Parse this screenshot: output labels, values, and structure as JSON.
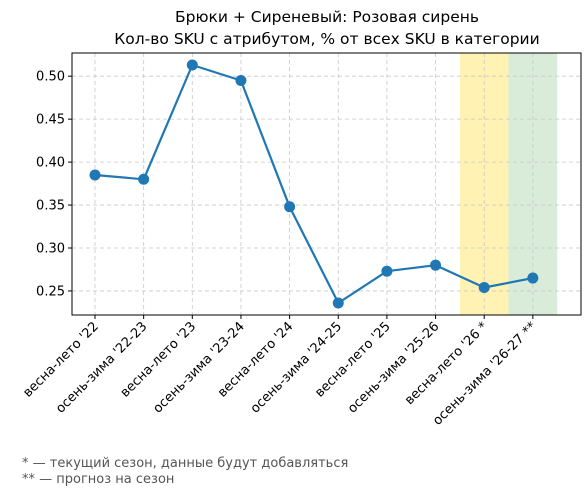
{
  "chart_data": {
    "type": "line",
    "title_line1": "Брюки + Сиреневый: Розовая сирень",
    "title_line2": "Кол-во SKU с атрибутом, % от всех SKU в категории",
    "xlabel": "",
    "ylabel": "",
    "categories": [
      "весна-лето '22",
      "осень-зима '22-23",
      "весна-лето '23",
      "осень-зима '23-24",
      "весна-лето '24",
      "осень-зима '24-25",
      "весна-лето '25",
      "осень-зима '25-26",
      "весна-лето '26 *",
      "осень-зима '26-27 **"
    ],
    "series": [
      {
        "values": [
          0.385,
          0.38,
          0.513,
          0.495,
          0.348,
          0.236,
          0.273,
          0.28,
          0.254,
          0.265
        ],
        "color": "#1f77b4"
      }
    ],
    "ylim": [
      0.222,
      0.527
    ],
    "yticks": [
      0.25,
      0.3,
      0.35,
      0.4,
      0.45,
      0.5
    ],
    "ytick_labels": [
      "0.25",
      "0.30",
      "0.35",
      "0.40",
      "0.45",
      "0.50"
    ],
    "grid": true,
    "highlights": [
      {
        "category_index": 8,
        "color": "#fff2b3",
        "meaning": "current season"
      },
      {
        "category_index": 9,
        "color": "#d9ecd9",
        "meaning": "forecast"
      }
    ]
  },
  "footnotes": [
    "* — текущий сезон, данные будут добавляться",
    "** — прогноз на сезон"
  ]
}
